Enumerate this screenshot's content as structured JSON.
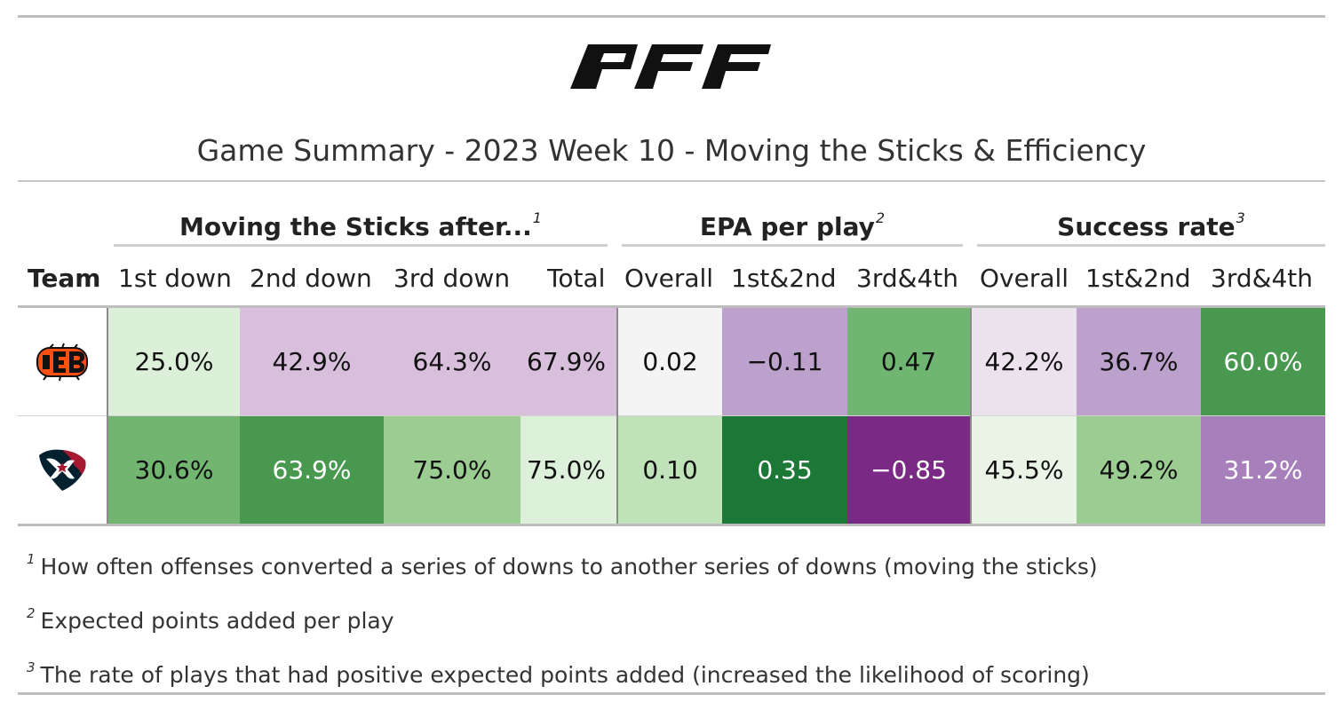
{
  "logo_text": "PFF",
  "title": "Game Summary - 2023 Week 10 - Moving the Sticks & Efficiency",
  "spanners": [
    {
      "label": "Moving the Sticks after...",
      "note": "1"
    },
    {
      "label": "EPA per play",
      "note": "2"
    },
    {
      "label": "Success rate",
      "note": "3"
    }
  ],
  "columns": [
    "Team",
    "1st down",
    "2nd down",
    "3rd down",
    "Total",
    "Overall",
    "1st&2nd",
    "3rd&4th",
    "Overall",
    "1st&2nd",
    "3rd&4th"
  ],
  "rows": [
    {
      "team_icon": "bengals-logo-icon",
      "values": [
        "25.0%",
        "42.9%",
        "64.3%",
        "67.9%",
        "0.02",
        "−0.11",
        "0.47",
        "42.2%",
        "36.7%",
        "60.0%"
      ],
      "colors": [
        "#dcefd9",
        "#d8bfdc",
        "#d8bfdc",
        "#d8bfdc",
        "#f4f4f4",
        "#bba1cc",
        "#70b571",
        "#ece2ee",
        "#bba1cc",
        "#48994f"
      ]
    },
    {
      "team_icon": "texans-logo-icon",
      "values": [
        "30.6%",
        "63.9%",
        "75.0%",
        "75.0%",
        "0.10",
        "0.35",
        "−0.85",
        "45.5%",
        "49.2%",
        "31.2%"
      ],
      "colors": [
        "#71b571",
        "#48994f",
        "#9bcd92",
        "#ddf0da",
        "#bfe2b9",
        "#1b7837",
        "#7a2a85",
        "#e9f4e6",
        "#9bcd92",
        "#a780bb"
      ]
    }
  ],
  "footnotes": [
    {
      "mark": "1",
      "text": "How often offenses converted a series of downs to another series of downs (moving the sticks)"
    },
    {
      "mark": "2",
      "text": "Expected points added per play"
    },
    {
      "mark": "3",
      "text": "The rate of plays that had positive expected points added (increased the likelihood of scoring)"
    }
  ]
}
